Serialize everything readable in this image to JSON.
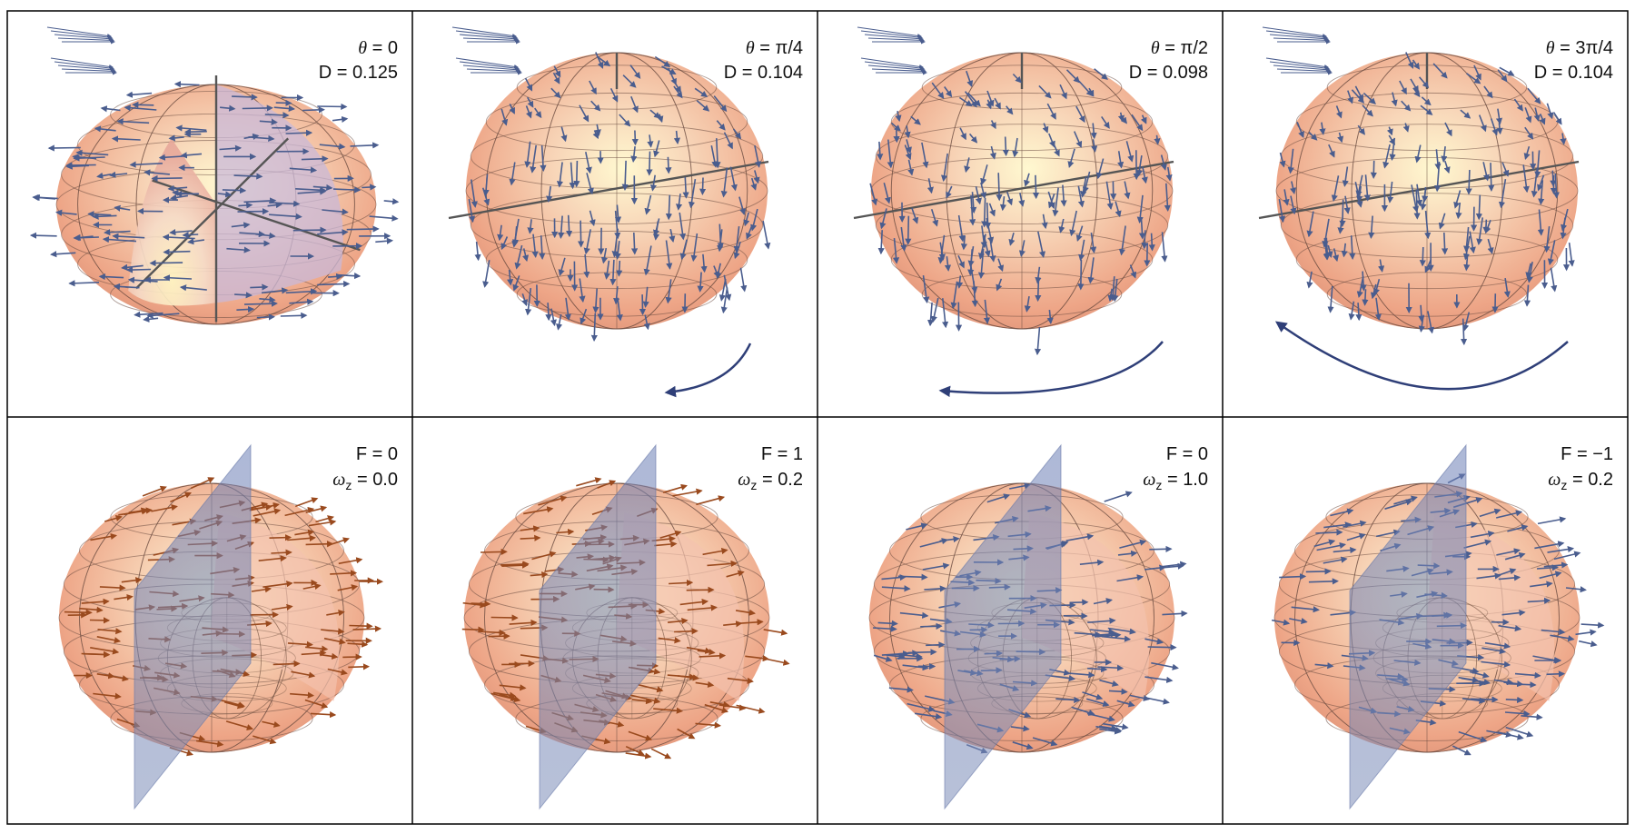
{
  "colors": {
    "arrow_blue": "#4a5d8e",
    "arrow_orange": "#9a4a1e",
    "sphere": "#f0a07e",
    "sphere_highlight": "#fff6c8",
    "plane": "#6d7fb3",
    "border": "#000000"
  },
  "top_panels": [
    {
      "theta_symbol": "θ",
      "eq": "=",
      "theta_value": "0",
      "d_label": "D",
      "d_value": "0.125",
      "view": "cutaway",
      "rotation_arrow": "none"
    },
    {
      "theta_symbol": "θ",
      "eq": "=",
      "theta_value": "π/4",
      "d_label": "D",
      "d_value": "0.104",
      "view": "full",
      "rotation_arrow": "right"
    },
    {
      "theta_symbol": "θ",
      "eq": "=",
      "theta_value": "π/2",
      "d_label": "D",
      "d_value": "0.098",
      "view": "full",
      "rotation_arrow": "center"
    },
    {
      "theta_symbol": "θ",
      "eq": "=",
      "theta_value": "3π/4",
      "d_label": "D",
      "d_value": "0.104",
      "view": "full",
      "rotation_arrow": "double"
    }
  ],
  "bottom_panels": [
    {
      "f_label": "F",
      "eq": "=",
      "f_value": "0",
      "omega_symbol": "ω",
      "omega_sub": "z",
      "omega_value": "0.0",
      "arrow_color": "orange"
    },
    {
      "f_label": "F",
      "eq": "=",
      "f_value": "1",
      "omega_symbol": "ω",
      "omega_sub": "z",
      "omega_value": "0.2",
      "arrow_color": "orange"
    },
    {
      "f_label": "F",
      "eq": "=",
      "f_value": "0",
      "omega_symbol": "ω",
      "omega_sub": "z",
      "omega_value": "1.0",
      "arrow_color": "blue"
    },
    {
      "f_label": "F",
      "eq": "=",
      "f_value": "−1",
      "omega_symbol": "ω",
      "omega_sub": "z",
      "omega_value": "0.2",
      "arrow_color": "blue"
    }
  ]
}
